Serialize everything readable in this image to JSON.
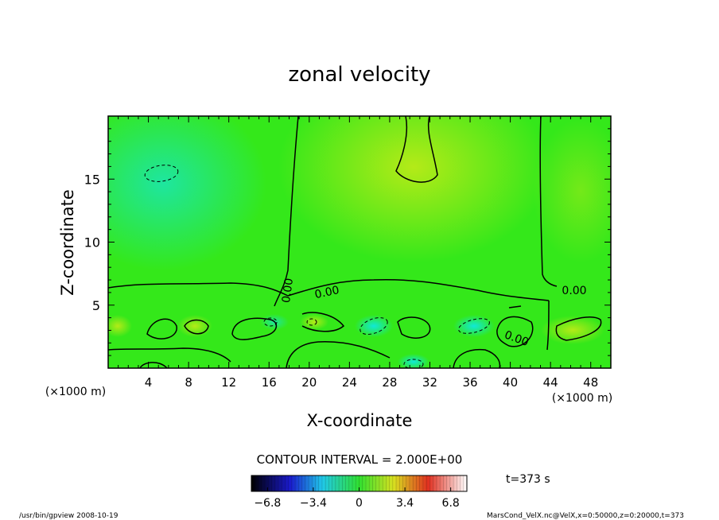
{
  "chart_data": {
    "type": "heatmap",
    "title": "zonal velocity",
    "xlabel": "X-coordinate",
    "ylabel": "Z-coordinate",
    "x_unit_left": "(×1000 m)",
    "x_unit_right": "(×1000 m)",
    "xlim": [
      0,
      50
    ],
    "ylim": [
      0,
      20
    ],
    "x_ticks": [
      4,
      8,
      12,
      16,
      20,
      24,
      28,
      32,
      36,
      40,
      44,
      48
    ],
    "y_ticks": [
      5,
      10,
      15
    ],
    "contour_interval_text": "CONTOUR INTERVAL = 2.000E+00",
    "contour_labels": [
      "0.00",
      "0.00",
      "0.00",
      "0.00"
    ],
    "time_label": "t=373 s",
    "colorbar": {
      "range": [
        -8,
        8
      ],
      "tick_values": [
        -6.8,
        -3.4,
        0,
        3.4,
        6.8
      ],
      "tick_labels": [
        "−6.8",
        "−3.4",
        "0",
        "3.4",
        "6.8"
      ]
    },
    "colors": {
      "background_field": "#34e81a",
      "upper_left_cyan": "#1ee6a0",
      "upper_center_yellow": "#a8ea18",
      "plot_frame": "#000000"
    }
  },
  "footer": {
    "left": "/usr/bin/gpview   2008-10-19",
    "right": "MarsCond_VelX.nc@VelX,x=0:50000,z=0:20000,t=373"
  }
}
